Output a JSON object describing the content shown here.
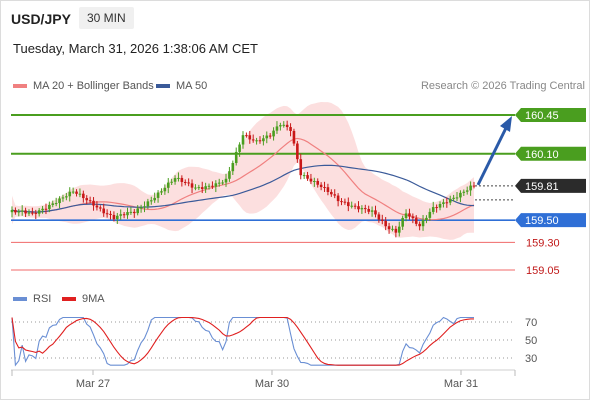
{
  "header": {
    "pair": "USD/JPY",
    "timeframe": "30 MIN",
    "datetime": "Tuesday, March 31, 2026 1:38:06 AM CET"
  },
  "legend": {
    "ma20_bb": {
      "label": "MA 20 + Bollinger Bands",
      "color": "#f08080"
    },
    "ma50": {
      "label": "MA 50",
      "color": "#3a5a99"
    },
    "rsi": {
      "label": "RSI",
      "color": "#6a8fd4"
    },
    "ma9": {
      "label": "9MA",
      "color": "#e02020"
    }
  },
  "credit": "Research © 2026 Trading Central",
  "colors": {
    "up": "#4a9e1f",
    "down": "#c91818",
    "resistance": "#4a9e1f",
    "pivot": "#2f6fd6",
    "support": "#f06a6a",
    "arrow": "#2a5aa8",
    "bands": "#fcd9d9"
  },
  "chart_data": {
    "type": "candlestick",
    "y_range": [
      159.0,
      160.55
    ],
    "x_ticks": [
      "Mar 27",
      "Mar 30",
      "Mar 31"
    ],
    "current_price": {
      "value": 159.81,
      "label": "159.81"
    },
    "levels": [
      {
        "value": 160.45,
        "label": "160.45",
        "kind": "resistance"
      },
      {
        "value": 160.1,
        "label": "160.10",
        "kind": "resistance"
      },
      {
        "value": 159.5,
        "label": "159.50",
        "kind": "pivot"
      },
      {
        "value": 159.3,
        "label": "159.30",
        "kind": "support"
      },
      {
        "value": 159.05,
        "label": "159.05",
        "kind": "support"
      }
    ],
    "target": 160.45,
    "rsi": {
      "range": [
        20,
        80
      ],
      "levels": [
        {
          "value": 70,
          "label": "70"
        },
        {
          "value": 50,
          "label": "50"
        },
        {
          "value": 30,
          "label": "30"
        }
      ]
    }
  }
}
